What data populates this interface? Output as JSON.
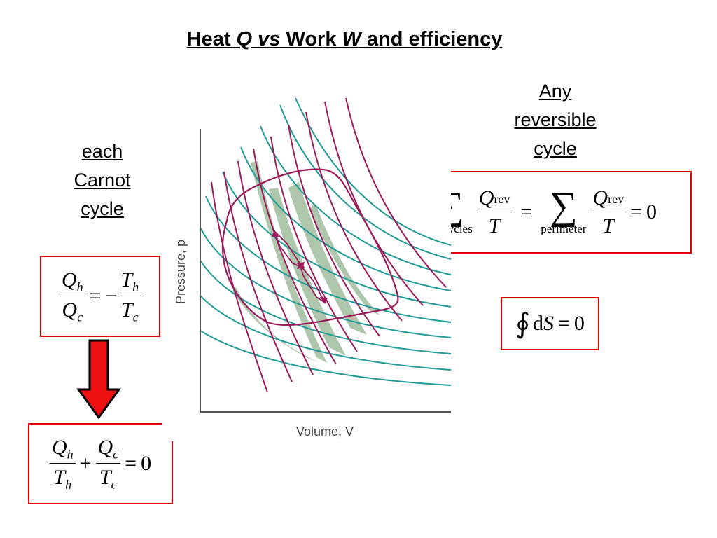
{
  "title": {
    "part1": "Heat ",
    "q": "Q",
    "vs": " vs ",
    "part2": "Work ",
    "w": "W",
    "part3": " and efficiency"
  },
  "left_label": [
    "each",
    "Carnot",
    "cycle"
  ],
  "right_label": [
    "Any",
    "reversible",
    "cycle"
  ],
  "carnot_eq": {
    "lhs_num": "Q",
    "lhs_num_sub": "h",
    "lhs_den": "Q",
    "lhs_den_sub": "c",
    "eq": "=",
    "minus": "−",
    "rhs_num": "T",
    "rhs_num_sub": "h",
    "rhs_den": "T",
    "rhs_den_sub": "c"
  },
  "sum_eq": {
    "a_num": "Q",
    "a_num_sub": "h",
    "a_den": "T",
    "a_den_sub": "h",
    "plus": "+",
    "b_num": "Q",
    "b_num_sub": "c",
    "b_den": "T",
    "b_den_sub": "c",
    "eq": "=",
    "zero": "0"
  },
  "reversible_eq": {
    "sigma": "∑",
    "lim1": "all cycles",
    "num": "Q",
    "num_sub": "rev",
    "den": "T",
    "eq": "=",
    "lim2": "perimeter",
    "zero": "0"
  },
  "entropy_eq": {
    "integral": "∮",
    "d": "d",
    "s": "S",
    "eq": "=",
    "zero": "0"
  },
  "diagram": {
    "ylabel": "Pressure, p",
    "xlabel": "Volume, V"
  },
  "colors": {
    "isotherm": "#1f9a96",
    "adiabat": "#9c1a5a",
    "shade": "#a9c4a8",
    "box_border": "#e00000",
    "arrow": "#ee1111"
  }
}
